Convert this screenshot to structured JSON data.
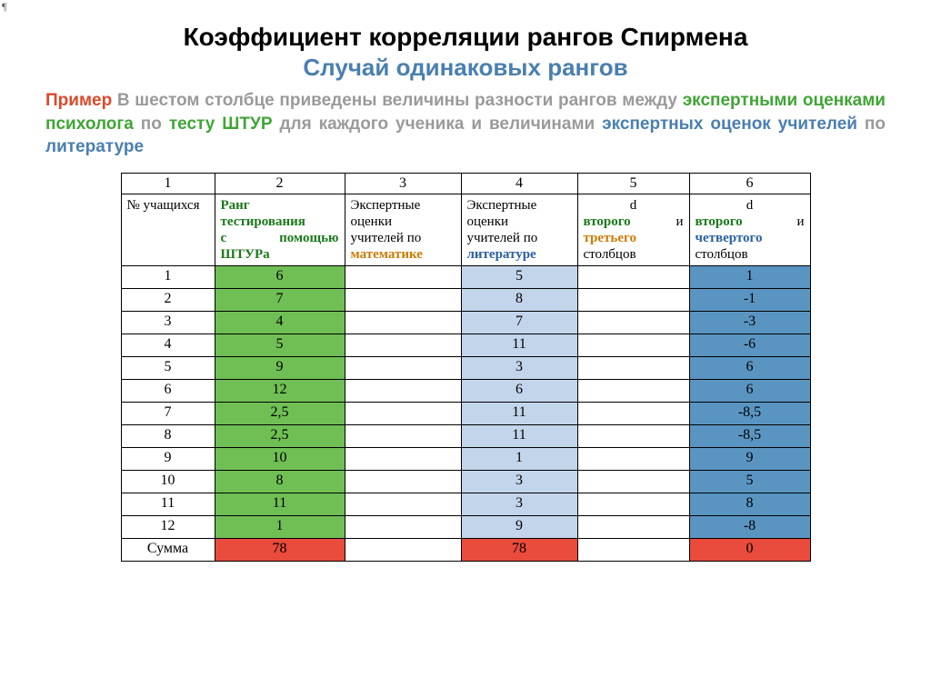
{
  "marker": "¶",
  "title1": "Коэффициент корреляции рангов Спирмена",
  "title2": "Случай одинаковых рангов",
  "title2_color": "#4a7fb0",
  "intro": {
    "p1": {
      "text": "Пример",
      "color": "#d94a2b"
    },
    "p2": {
      "text": "   В шестом столбце приведены величины разности рангов между ",
      "color": "#9a9a9a"
    },
    "p3": {
      "text": "экспертными оценками психолога",
      "color": "#3fa535"
    },
    "p4": {
      "text": " по ",
      "color": "#9a9a9a"
    },
    "p5": {
      "text": "тесту ШТУР",
      "color": "#3fa535"
    },
    "p6": {
      "text": " для каждого ученика и величинами ",
      "color": "#9a9a9a"
    },
    "p7": {
      "text": "экспертных оценок учителей",
      "color": "#4a7fb0"
    },
    "p8": {
      "text": " по ",
      "color": "#9a9a9a"
    },
    "p9": {
      "text": "литературе",
      "color": "#4a7fb0"
    }
  },
  "table": {
    "colnums": [
      "1",
      "2",
      "3",
      "4",
      "5",
      "6"
    ],
    "headers": {
      "h1": {
        "text": "№ учащихся",
        "color": "#000000"
      },
      "h2": {
        "line1": {
          "text": "Ранг",
          "color": "#1a7a1a"
        },
        "line2": {
          "text": "тестирования",
          "color": "#1a7a1a"
        },
        "line3a": {
          "text": "с",
          "color": "#1a7a1a"
        },
        "line3b": {
          "text": "помощью",
          "color": "#1a7a1a"
        },
        "line4": {
          "text": "ШТУРа",
          "color": "#1a7a1a"
        }
      },
      "h3": {
        "line1": {
          "text": "Экспертные",
          "color": "#000000"
        },
        "line2": {
          "text": "оценки",
          "color": "#000000"
        },
        "line3": {
          "text": "учителей по",
          "color": "#000000"
        },
        "line4": {
          "text": "математике",
          "color": "#cc7a00"
        }
      },
      "h4": {
        "line1": {
          "text": "Экспертные",
          "color": "#000000"
        },
        "line2": {
          "text": "оценки",
          "color": "#000000"
        },
        "line3": {
          "text": "учителей по",
          "color": "#000000"
        },
        "line4": {
          "text": "литературе",
          "color": "#2a5fa0"
        }
      },
      "h5": {
        "lineA": {
          "text": "d",
          "color": "#000000"
        },
        "w1": {
          "text": "второго",
          "color": "#1a7a1a"
        },
        "conj": {
          "text": "и",
          "color": "#000000"
        },
        "w2": {
          "text": "третьего",
          "color": "#cc7a00"
        },
        "w3": {
          "text": "столбцов",
          "color": "#000000"
        }
      },
      "h6": {
        "lineA": {
          "text": "d",
          "color": "#000000"
        },
        "w1": {
          "text": "второго",
          "color": "#1a7a1a"
        },
        "conj": {
          "text": "и",
          "color": "#000000"
        },
        "w2": {
          "text": "четвертого",
          "color": "#2a5fa0"
        },
        "w3": {
          "text": "столбцов",
          "color": "#000000"
        }
      }
    },
    "rows": [
      {
        "c1": "1",
        "c2": "6",
        "c3": "",
        "c4": "5",
        "c5": "",
        "c6": "1"
      },
      {
        "c1": "2",
        "c2": "7",
        "c3": "",
        "c4": "8",
        "c5": "",
        "c6": "-1"
      },
      {
        "c1": "3",
        "c2": "4",
        "c3": "",
        "c4": "7",
        "c5": "",
        "c6": "-3"
      },
      {
        "c1": "4",
        "c2": "5",
        "c3": "",
        "c4": "11",
        "c5": "",
        "c6": "-6"
      },
      {
        "c1": "5",
        "c2": "9",
        "c3": "",
        "c4": "3",
        "c5": "",
        "c6": "6"
      },
      {
        "c1": "6",
        "c2": "12",
        "c3": "",
        "c4": "6",
        "c5": "",
        "c6": "6"
      },
      {
        "c1": "7",
        "c2": "2,5",
        "c3": "",
        "c4": "11",
        "c5": "",
        "c6": "-8,5"
      },
      {
        "c1": "8",
        "c2": "2,5",
        "c3": "",
        "c4": "11",
        "c5": "",
        "c6": "-8,5"
      },
      {
        "c1": "9",
        "c2": "10",
        "c3": "",
        "c4": "1",
        "c5": "",
        "c6": "9"
      },
      {
        "c1": "10",
        "c2": "8",
        "c3": "",
        "c4": "3",
        "c5": "",
        "c6": "5"
      },
      {
        "c1": "11",
        "c2": "11",
        "c3": "",
        "c4": "3",
        "c5": "",
        "c6": "8"
      },
      {
        "c1": "12",
        "c2": "1",
        "c3": "",
        "c4": "9",
        "c5": "",
        "c6": "-8"
      }
    ],
    "sum": {
      "label": "Сумма",
      "c2": "78",
      "c3": "",
      "c4": "78",
      "c5": "",
      "c6": "0"
    },
    "col_bg": {
      "c2": "bg-green",
      "c4": "bg-lblue",
      "c6": "bg-dblue"
    },
    "sum_bg": "bg-red"
  }
}
